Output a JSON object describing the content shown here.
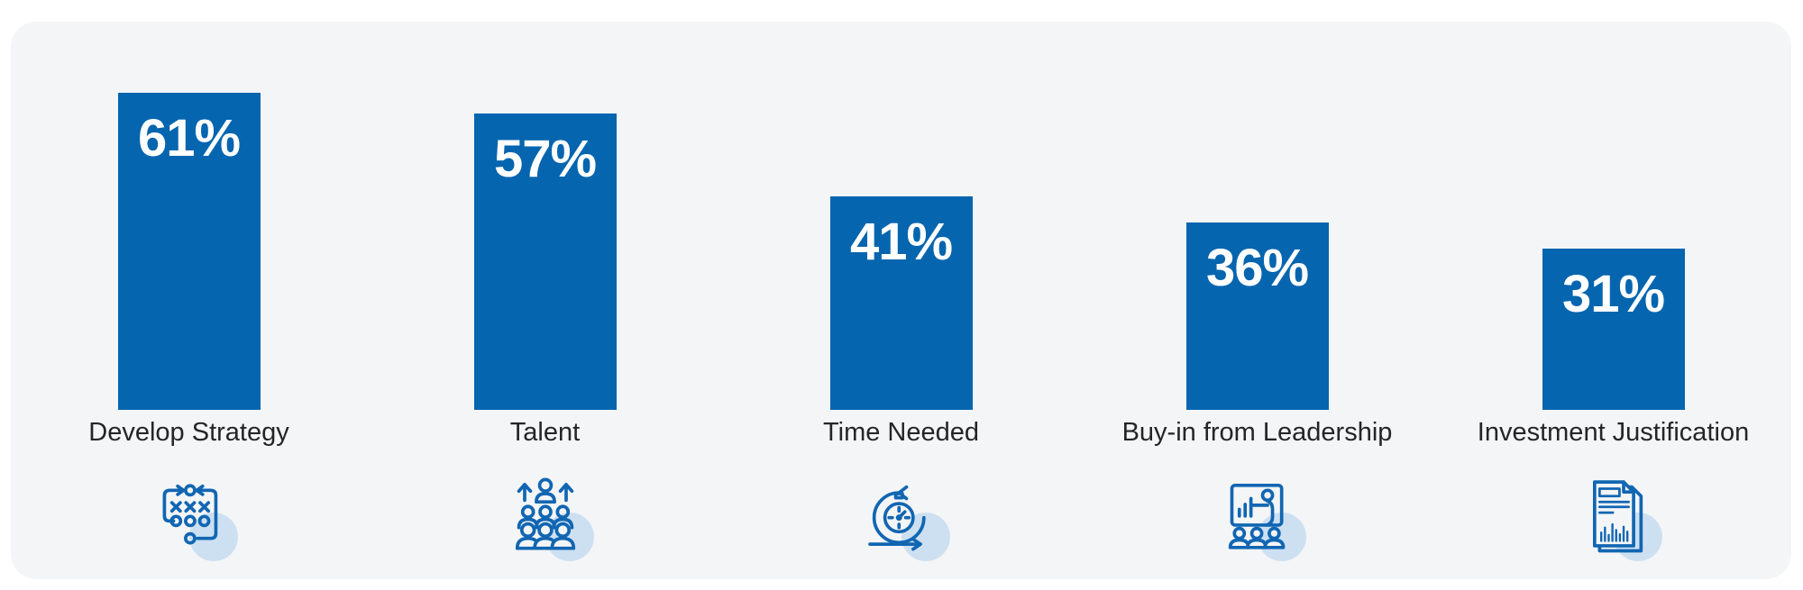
{
  "chart_data": {
    "type": "bar",
    "title": "",
    "xlabel": "",
    "ylabel": "",
    "categories": [
      "Develop Strategy",
      "Talent",
      "Time Needed",
      "Buy-in from Leadership",
      "Investment Justification"
    ],
    "values": [
      61,
      57,
      41,
      36,
      31
    ],
    "labels": [
      "61%",
      "57%",
      "41%",
      "36%",
      "31%"
    ],
    "icons": [
      "strategy-tactics-icon",
      "talent-growth-icon",
      "sprint-timer-icon",
      "leadership-presentation-icon",
      "report-document-icon"
    ],
    "ylim": [
      0,
      65
    ],
    "grid": false,
    "legend": null,
    "value_label_position": "inside-top",
    "bar_color": "#0565af",
    "value_text_color": "#ffffff",
    "category_text_color": "#232527",
    "icon_color": "#1166b2",
    "icon_halo_color": "#cde0f1",
    "card_background": "#f4f5f7",
    "page_background": "#ffffff"
  }
}
